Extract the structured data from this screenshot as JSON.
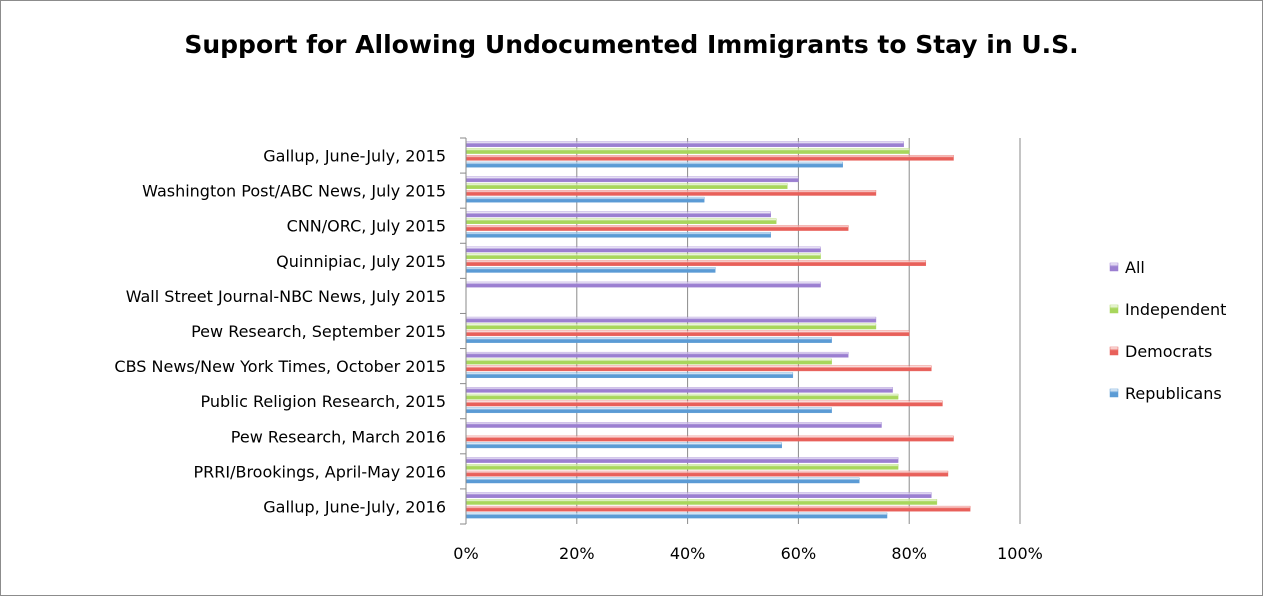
{
  "chart_data": {
    "type": "bar",
    "orientation": "horizontal",
    "title": "Support for Allowing Undocumented Immigrants to Stay in U.S.",
    "categories": [
      "Gallup, June-July, 2015",
      "Washington Post/ABC News, July 2015",
      "CNN/ORC, July 2015",
      "Quinnipiac, July 2015",
      "Wall Street Journal-NBC News, July 2015",
      "Pew Research, September 2015",
      "CBS News/New York Times, October 2015",
      "Public Religion Research, 2015",
      "Pew Research, March 2016",
      "PRRI/Brookings, April-May 2016",
      "Gallup, June-July, 2016"
    ],
    "series": [
      {
        "name": "All",
        "color": "#9b7fd1",
        "values": [
          79,
          60,
          55,
          64,
          64,
          74,
          69,
          77,
          75,
          78,
          84
        ]
      },
      {
        "name": "Independent",
        "color": "#a8d65c",
        "values": [
          80,
          58,
          56,
          64,
          null,
          74,
          66,
          78,
          null,
          78,
          85
        ]
      },
      {
        "name": "Democrats",
        "color": "#e8605a",
        "values": [
          88,
          74,
          69,
          83,
          null,
          80,
          84,
          86,
          88,
          87,
          91
        ]
      },
      {
        "name": "Republicans",
        "color": "#5b9bd5",
        "values": [
          68,
          43,
          55,
          45,
          null,
          66,
          59,
          66,
          57,
          71,
          76
        ]
      }
    ],
    "xlim": [
      0,
      100
    ],
    "xticks": [
      "0%",
      "20%",
      "40%",
      "60%",
      "80%",
      "100%"
    ],
    "grid": true,
    "legend_position": "right"
  }
}
